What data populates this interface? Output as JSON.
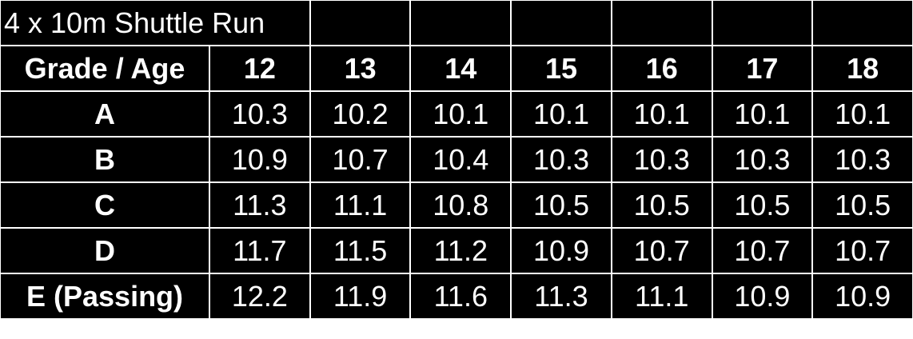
{
  "title": "4 x 10m Shuttle Run",
  "header_label": "Grade / Age",
  "ages": [
    "12",
    "13",
    "14",
    "15",
    "16",
    "17",
    "18"
  ],
  "rows": [
    {
      "grade": "A",
      "values": [
        "10.3",
        "10.2",
        "10.1",
        "10.1",
        "10.1",
        "10.1",
        "10.1"
      ]
    },
    {
      "grade": "B",
      "values": [
        "10.9",
        "10.7",
        "10.4",
        "10.3",
        "10.3",
        "10.3",
        "10.3"
      ]
    },
    {
      "grade": "C",
      "values": [
        "11.3",
        "11.1",
        "10.8",
        "10.5",
        "10.5",
        "10.5",
        "10.5"
      ]
    },
    {
      "grade": "D",
      "values": [
        "11.7",
        "11.5",
        "11.2",
        "10.9",
        "10.7",
        "10.7",
        "10.7"
      ]
    },
    {
      "grade": "E (Passing)",
      "values": [
        "12.2",
        "11.9",
        "11.6",
        "11.3",
        "11.1",
        "10.9",
        "10.9"
      ]
    }
  ]
}
